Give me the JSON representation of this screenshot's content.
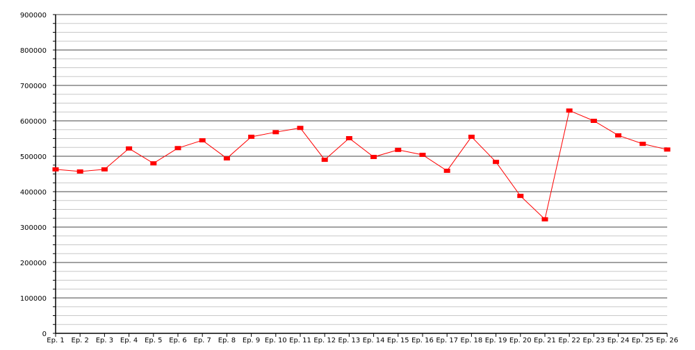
{
  "chart_data": {
    "type": "line",
    "title": "",
    "xlabel": "",
    "ylabel": "",
    "categories": [
      "Ep. 1",
      "Ep. 2",
      "Ep. 3",
      "Ep. 4",
      "Ep. 5",
      "Ep. 6",
      "Ep. 7",
      "Ep. 8",
      "Ep. 9",
      "Ep. 10",
      "Ep. 11",
      "Ep. 12",
      "Ep. 13",
      "Ep. 14",
      "Ep. 15",
      "Ep. 16",
      "Ep. 17",
      "Ep. 18",
      "Ep. 19",
      "Ep. 20",
      "Ep. 21",
      "Ep. 22",
      "Ep. 23",
      "Ep. 24",
      "Ep. 25",
      "Ep. 26"
    ],
    "series": [
      {
        "values": [
          463000,
          457000,
          463000,
          522000,
          480000,
          523000,
          545000,
          494000,
          555000,
          568000,
          580000,
          490000,
          551000,
          498000,
          518000,
          504000,
          459000,
          555000,
          484000,
          388000,
          322000,
          629000,
          600000,
          559000,
          535000,
          519000
        ],
        "color": "#ff0000"
      }
    ],
    "ylim": [
      0,
      900000
    ],
    "yticks": [
      "0",
      "100000",
      "200000",
      "300000",
      "400000",
      "500000",
      "600000",
      "700000",
      "800000",
      "900000"
    ],
    "minor_step": 25000,
    "grid": true,
    "legend": "none"
  }
}
